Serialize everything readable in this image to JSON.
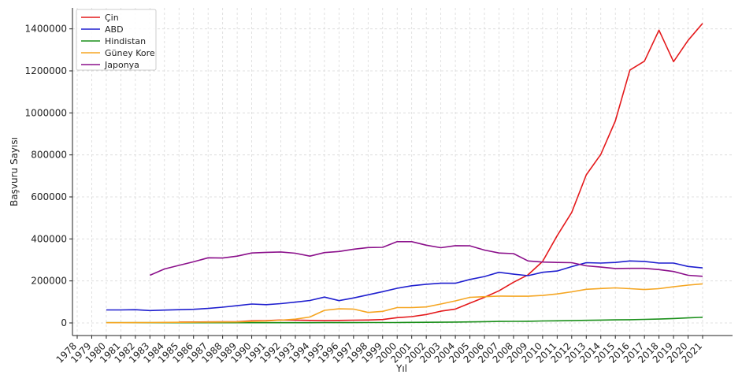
{
  "chart_data": {
    "type": "line",
    "title": "",
    "xlabel": "Yıl",
    "ylabel": "Başvuru Sayısı",
    "x": [
      1978,
      1979,
      1980,
      1981,
      1982,
      1983,
      1984,
      1985,
      1986,
      1987,
      1988,
      1989,
      1990,
      1991,
      1992,
      1993,
      1994,
      1995,
      1996,
      1997,
      1998,
      1999,
      2000,
      2001,
      2002,
      2003,
      2004,
      2005,
      2006,
      2007,
      2008,
      2009,
      2010,
      2011,
      2012,
      2013,
      2014,
      2015,
      2016,
      2017,
      2018,
      2019,
      2020,
      2021
    ],
    "x_tick_labels": [
      "1978",
      "1979",
      "1980",
      "1981",
      "1982",
      "1983",
      "1984",
      "1985",
      "1986",
      "1987",
      "1988",
      "1989",
      "1990",
      "1991",
      "1992",
      "1993",
      "1994",
      "1995",
      "1996",
      "1997",
      "1998",
      "1999",
      "2000",
      "2001",
      "2002",
      "2003",
      "2004",
      "2005",
      "2006",
      "2007",
      "2008",
      "2009",
      "2010",
      "2011",
      "2012",
      "2013",
      "2014",
      "2015",
      "2016",
      "2017",
      "2018",
      "2019",
      "2020",
      "2021"
    ],
    "ylim": [
      -60000,
      1500000
    ],
    "y_ticks": [
      0,
      200000,
      400000,
      600000,
      800000,
      1000000,
      1200000,
      1400000
    ],
    "y_tick_labels": [
      "0",
      "200000",
      "400000",
      "600000",
      "800000",
      "1000000",
      "1200000",
      "1400000"
    ],
    "grid": true,
    "legend_position": "top-left",
    "series": [
      {
        "name": "Çin",
        "color": "#e41a1c",
        "values": [
          null,
          null,
          null,
          null,
          null,
          null,
          null,
          4000,
          4500,
          5000,
          5500,
          6000,
          10000,
          11000,
          14000,
          13000,
          12000,
          11000,
          12000,
          13000,
          14000,
          16000,
          25000,
          30000,
          40000,
          56000,
          66000,
          94000,
          122000,
          153000,
          194000,
          229000,
          293000,
          415000,
          526000,
          705000,
          802000,
          962000,
          1204000,
          1246000,
          1394000,
          1244000,
          1345000,
          1426000
        ]
      },
      {
        "name": "ABD",
        "color": "#1f1fcf",
        "values": [
          null,
          null,
          62000,
          62000,
          63000,
          59000,
          61000,
          63000,
          65000,
          69000,
          75000,
          82000,
          90000,
          87000,
          92000,
          99000,
          107000,
          123000,
          106000,
          119000,
          134000,
          149000,
          165000,
          177000,
          184000,
          189000,
          189000,
          207000,
          221000,
          241000,
          232000,
          225000,
          241000,
          247000,
          268000,
          287000,
          285000,
          288000,
          295000,
          293000,
          285000,
          285000,
          269000,
          262000
        ]
      },
      {
        "name": "Hindistan",
        "color": "#1a8f1a",
        "values": [
          null,
          null,
          1000,
          1000,
          1000,
          1000,
          1000,
          1000,
          1000,
          1000,
          1000,
          1000,
          1000,
          1000,
          1000,
          1000,
          1000,
          1500,
          1500,
          1500,
          2000,
          2000,
          2000,
          2500,
          3000,
          3500,
          4000,
          5000,
          6000,
          7000,
          7500,
          8000,
          9500,
          10000,
          11000,
          12500,
          13500,
          14500,
          15500,
          17000,
          18500,
          21000,
          24000,
          27000
        ]
      },
      {
        "name": "Güney Kore",
        "color": "#f5a623",
        "values": [
          null,
          null,
          1000,
          1000,
          1500,
          2000,
          2500,
          3000,
          3500,
          4000,
          4500,
          5000,
          7000,
          9000,
          13000,
          18000,
          28000,
          60000,
          67000,
          66000,
          50000,
          55000,
          73000,
          73000,
          76000,
          90000,
          105000,
          122000,
          125000,
          128000,
          127000,
          127000,
          131000,
          138000,
          148000,
          160000,
          164000,
          167000,
          163000,
          159000,
          163000,
          172000,
          180000,
          186000
        ]
      },
      {
        "name": "Japonya",
        "color": "#8b108b",
        "values": [
          null,
          null,
          null,
          null,
          null,
          227000,
          257000,
          274000,
          291000,
          310000,
          309000,
          318000,
          333000,
          336000,
          338000,
          332000,
          318000,
          335000,
          340000,
          351000,
          359000,
          360000,
          387000,
          387000,
          370000,
          358000,
          368000,
          367000,
          347000,
          333000,
          330000,
          295000,
          290000,
          288000,
          287000,
          272000,
          266000,
          259000,
          260000,
          260000,
          254000,
          245000,
          227000,
          222000
        ]
      }
    ]
  }
}
